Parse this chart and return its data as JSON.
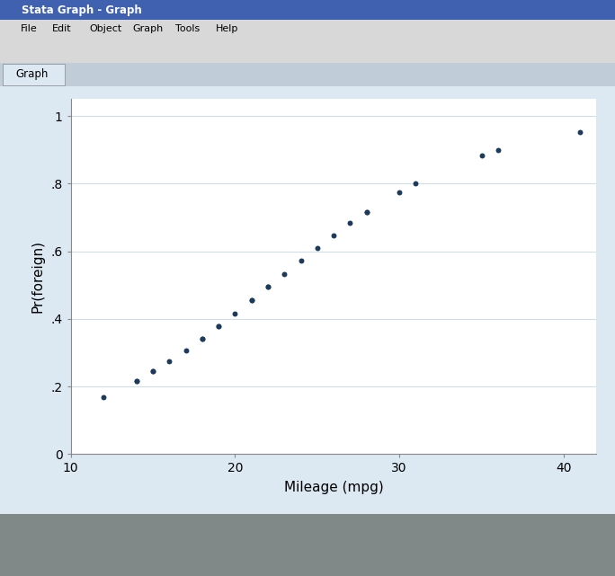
{
  "mpg_values": [
    12,
    14,
    14,
    15,
    15,
    16,
    17,
    18,
    18,
    19,
    19,
    20,
    21,
    21,
    22,
    22,
    23,
    24,
    25,
    26,
    27,
    28,
    28,
    30,
    31,
    35,
    36,
    41
  ],
  "b0": -3.5,
  "b1": 0.158,
  "dot_color": "#1b3a5c",
  "marker_size": 18,
  "xlabel": "Mileage (mpg)",
  "ylabel": "Pr(foreign)",
  "xlim": [
    10,
    42
  ],
  "ylim": [
    0.0,
    1.05
  ],
  "xticks": [
    10,
    20,
    30,
    40
  ],
  "yticks": [
    0.0,
    0.2,
    0.4,
    0.6,
    0.8,
    1.0
  ],
  "ytick_labels": [
    "0",
    ".2",
    ".4",
    ".6",
    ".8",
    "1"
  ],
  "plot_bg_color": "#ffffff",
  "plot_outer_color": "#dce8f2",
  "fig_bg_color": "#c0c8d0",
  "grid_color": "#e0e8f0",
  "label_fontsize": 11,
  "tick_fontsize": 10,
  "titlebar_color_top": "#5080c0",
  "titlebar_color_bot": "#2850a0",
  "menubar_bg": "#d8d8d8",
  "toolbar_bg": "#d8d8d8",
  "tabbar_bg": "#c8d8e8",
  "statusbar_bg": "#808888",
  "window_title": "Stata Graph - Graph",
  "tab_text": "Graph"
}
